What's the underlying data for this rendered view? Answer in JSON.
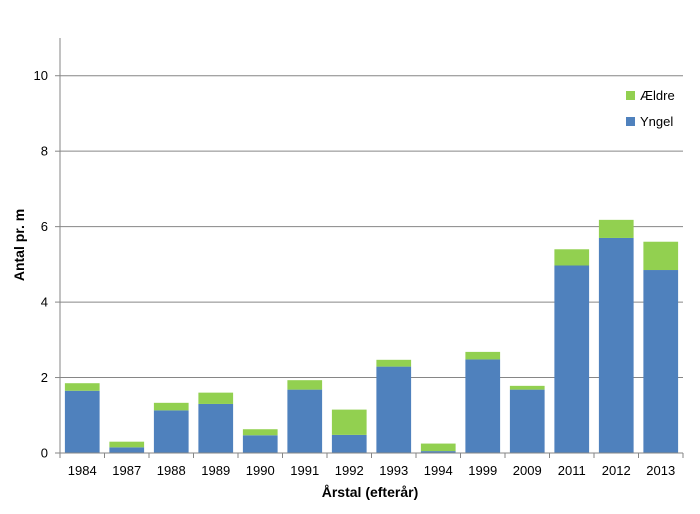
{
  "chart_data": {
    "type": "bar",
    "stacked": true,
    "title": "",
    "xlabel": "Årstal (efterår)",
    "ylabel": "Antal pr. m",
    "ylim": [
      0,
      11
    ],
    "yticks": [
      0,
      2,
      4,
      6,
      8,
      10
    ],
    "grid": true,
    "legend_position": "top-right",
    "categories": [
      "1984",
      "1987",
      "1988",
      "1989",
      "1990",
      "1991",
      "1992",
      "1993",
      "1994",
      "1999",
      "2009",
      "2011",
      "2012",
      "2013"
    ],
    "series": [
      {
        "name": "Yngel",
        "color": "#4f81bd",
        "values": [
          1.65,
          0.15,
          1.13,
          1.3,
          0.47,
          1.68,
          0.48,
          2.29,
          0.05,
          2.48,
          1.68,
          4.97,
          5.7,
          4.85
        ]
      },
      {
        "name": "Ældre",
        "color": "#92d050",
        "values": [
          0.2,
          0.15,
          0.2,
          0.3,
          0.16,
          0.25,
          0.67,
          0.18,
          0.2,
          0.2,
          0.1,
          0.43,
          0.48,
          0.75
        ]
      }
    ],
    "legend_order": [
      "Ældre",
      "Yngel"
    ]
  }
}
